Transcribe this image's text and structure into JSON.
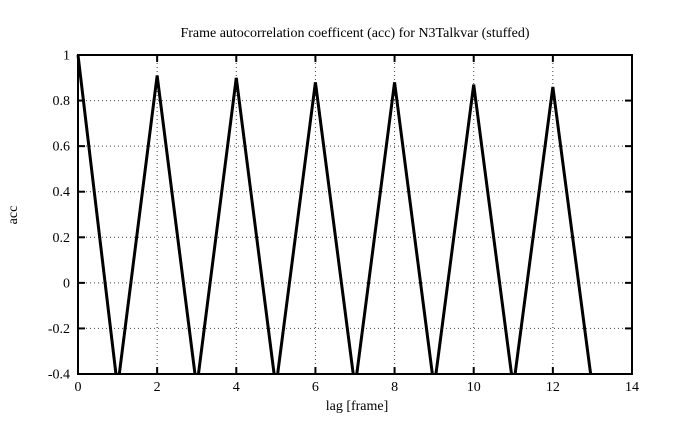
{
  "chart_data": {
    "type": "line",
    "title": "Frame autocorrelation coefficent (acc) for N3Talkvar (stuffed)",
    "xlabel": "lag [frame]",
    "ylabel": "acc",
    "xlim": [
      0,
      14
    ],
    "ylim": [
      -0.4,
      1
    ],
    "xticks": [
      0,
      2,
      4,
      6,
      8,
      10,
      12,
      14
    ],
    "xticklabels": [
      "0",
      "2",
      "4",
      "6",
      "8",
      "10",
      "12",
      "14"
    ],
    "yticks": [
      1,
      0.8,
      0.6,
      0.4,
      0.2,
      0,
      -0.2,
      -0.4
    ],
    "yticklabels": [
      "1",
      "0.8",
      "0.6",
      "0.4",
      "0.2",
      "0",
      "-0.2",
      "-0.4"
    ],
    "grid": "dotted",
    "legend": "none",
    "series": [
      {
        "name": "acc",
        "color": "#000000",
        "x": [
          0,
          1,
          2,
          3,
          4,
          5,
          6,
          7,
          8,
          9,
          10,
          11,
          12,
          13
        ],
        "y": [
          1.0,
          -0.46,
          0.91,
          -0.46,
          0.9,
          -0.46,
          0.88,
          -0.46,
          0.88,
          -0.46,
          0.87,
          -0.46,
          0.86,
          -0.46
        ]
      }
    ],
    "note_clipping": "values below -0.4 are clipped at the bottom axis"
  },
  "colors": {
    "background": "#ffffff",
    "line": "#000000",
    "grid": "#444444",
    "border": "#000000",
    "text": "#000000"
  }
}
